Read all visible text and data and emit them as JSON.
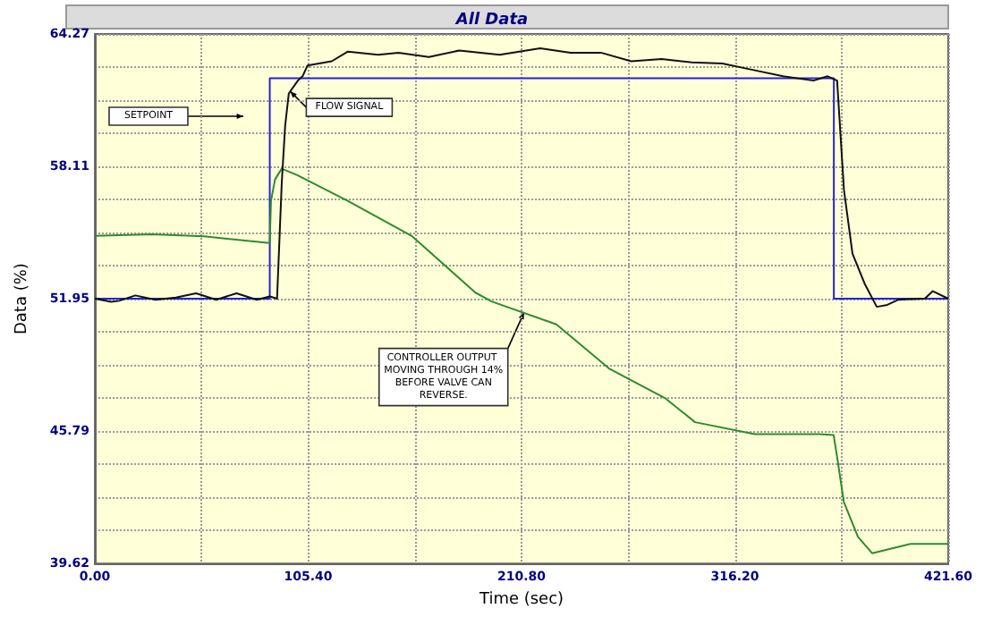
{
  "chart_data": {
    "type": "line",
    "title": "All Data",
    "xlabel": "Time (sec)",
    "ylabel": "Data (%)",
    "xlim": [
      0,
      421.6
    ],
    "ylim": [
      39.62,
      64.27
    ],
    "xticks": [
      {
        "value": 0,
        "label": "0.00"
      },
      {
        "value": 52.7,
        "label": null
      },
      {
        "value": 105.4,
        "label": "105.40"
      },
      {
        "value": 158.1,
        "label": null
      },
      {
        "value": 210.8,
        "label": "210.80"
      },
      {
        "value": 263.5,
        "label": null
      },
      {
        "value": 316.2,
        "label": "316.20"
      },
      {
        "value": 368.9,
        "label": null
      },
      {
        "value": 421.6,
        "label": "421.60"
      }
    ],
    "yticks": [
      {
        "value": 39.62,
        "label": "39.62"
      },
      {
        "value": 41.16,
        "label": null
      },
      {
        "value": 42.7,
        "label": null
      },
      {
        "value": 44.25,
        "label": null
      },
      {
        "value": 45.79,
        "label": "45.79"
      },
      {
        "value": 47.33,
        "label": null
      },
      {
        "value": 48.87,
        "label": null
      },
      {
        "value": 50.41,
        "label": null
      },
      {
        "value": 51.95,
        "label": "51.95"
      },
      {
        "value": 53.49,
        "label": null
      },
      {
        "value": 55.03,
        "label": null
      },
      {
        "value": 56.57,
        "label": null
      },
      {
        "value": 58.11,
        "label": "58.11"
      },
      {
        "value": 59.65,
        "label": null
      },
      {
        "value": 61.19,
        "label": null
      },
      {
        "value": 62.73,
        "label": null
      },
      {
        "value": 64.27,
        "label": "64.27"
      }
    ],
    "grid": true,
    "marker": "none",
    "line_style": "solid",
    "series": [
      {
        "color": "#2222dd",
        "x": [
          0,
          86.4,
          86.4,
          365.1,
          365.1,
          421.6
        ],
        "values": [
          51.95,
          51.95,
          62.21,
          62.21,
          51.95,
          51.95
        ]
      },
      {
        "color": "#2e8b2e",
        "x": [
          0,
          28,
          54,
          85,
          86.4,
          87,
          89,
          92.3,
          100,
          124.5,
          156.5,
          188,
          196,
          228,
          254,
          282,
          296.5,
          326,
          358,
          365,
          367,
          370,
          377,
          384,
          403,
          421.6
        ],
        "values": [
          54.87,
          54.95,
          54.85,
          54.55,
          54.55,
          56.5,
          57.5,
          58.0,
          57.7,
          56.52,
          54.87,
          52.23,
          51.82,
          50.75,
          48.7,
          47.3,
          46.2,
          45.64,
          45.64,
          45.6,
          44.4,
          42.5,
          40.86,
          40.1,
          40.53,
          40.53
        ]
      },
      {
        "color": "#111111",
        "x": [
          0,
          8,
          12,
          20,
          30,
          40,
          50,
          60,
          70,
          80,
          86.4,
          90,
          92.3,
          94,
          95.8,
          100.3,
          102.6,
          105,
          117,
          125,
          140,
          150,
          165,
          180,
          200,
          220,
          235,
          250,
          265,
          280,
          295,
          310,
          325,
          340,
          355,
          362,
          366.7,
          370.1,
          374.3,
          380.3,
          386.3,
          391.5,
          397,
          410,
          414,
          421.6
        ],
        "values": [
          51.95,
          51.8,
          51.85,
          52.1,
          51.9,
          52.0,
          52.2,
          51.9,
          52.2,
          51.9,
          52.05,
          51.95,
          57.3,
          60.0,
          61.5,
          62.1,
          62.3,
          62.8,
          63.0,
          63.45,
          63.3,
          63.4,
          63.2,
          63.5,
          63.3,
          63.6,
          63.4,
          63.4,
          63.0,
          63.1,
          62.95,
          62.9,
          62.6,
          62.3,
          62.1,
          62.3,
          62.1,
          57.0,
          54.05,
          52.65,
          51.57,
          51.66,
          51.9,
          51.95,
          52.3,
          51.95
        ]
      }
    ],
    "annotations": [
      "SETPOINT",
      {
        "text": "FLOW SIGNAL",
        "x": 96.5,
        "y": 61.6
      },
      {
        "text": "CONTROLLER OUTPUT MOVING THROUGH 14% BEFORE VALVE CAN REVERSE.",
        "x": 212,
        "y": 51.3
      }
    ]
  }
}
